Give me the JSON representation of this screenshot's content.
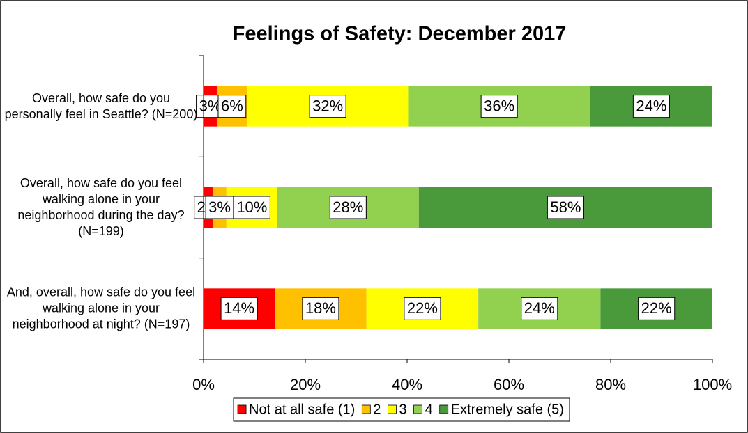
{
  "chart_data": {
    "type": "stacked_barh",
    "title": "Feelings of Safety:  December 2017",
    "categories": [
      "Overall, how safe do you personally feel in Seattle? (N=200)",
      "Overall, how safe do you feel walking alone in your neighborhood during the day? (N=199)",
      "And, overall, how safe do you feel walking alone in your neighborhood at night? (N=197)"
    ],
    "series": [
      {
        "name": "Not at all safe (1)",
        "color": "#ff0000",
        "values": [
          2.6,
          1.8,
          14
        ],
        "value_labels": [
          "3%",
          "2%",
          "14%"
        ]
      },
      {
        "name": "2",
        "color": "#ffc000",
        "values": [
          6.0,
          2.7,
          18
        ],
        "value_labels": [
          "6%",
          "3%",
          "18%"
        ]
      },
      {
        "name": "3",
        "color": "#ffff00",
        "values": [
          31.6,
          10.0,
          22
        ],
        "value_labels": [
          "32%",
          "10%",
          "22%"
        ]
      },
      {
        "name": "4",
        "color": "#92d050",
        "values": [
          35.8,
          27.8,
          24
        ],
        "value_labels": [
          "36%",
          "28%",
          "24%"
        ]
      },
      {
        "name": "Extremely safe (5)",
        "color": "#4a9a3c",
        "values": [
          24.0,
          57.7,
          22
        ],
        "value_labels": [
          "24%",
          "58%",
          "22%"
        ]
      }
    ],
    "xlim": [
      0,
      100
    ],
    "xticks": [
      {
        "value": 0,
        "label": "0%"
      },
      {
        "value": 20,
        "label": "20%"
      },
      {
        "value": 40,
        "label": "40%"
      },
      {
        "value": 60,
        "label": "60%"
      },
      {
        "value": 80,
        "label": "80%"
      },
      {
        "value": 100,
        "label": "100%"
      }
    ],
    "legend": "bottom"
  }
}
